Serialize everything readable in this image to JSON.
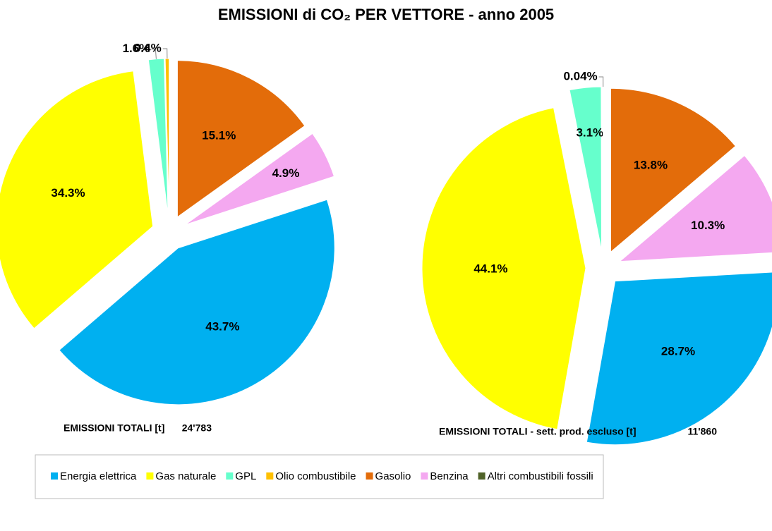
{
  "title": "EMISSIONI di CO₂ PER VETTORE - anno 2005",
  "chart_data": [
    {
      "type": "pie",
      "categories": [
        "Energia elettrica",
        "Gas naturale",
        "GPL",
        "Olio combustibile",
        "Gasolio",
        "Benzina",
        "Altri combustibili fossili"
      ],
      "values": [
        43.7,
        34.3,
        1.6,
        0.4,
        15.1,
        4.9,
        0
      ],
      "value_labels": [
        "43.7%",
        "34.3%",
        "1.6%",
        "0.4%",
        "15.1%",
        "4.9%",
        null
      ],
      "colors": [
        "#00b0f0",
        "#ffff00",
        "#66ffcc",
        "#ffc000",
        "#e36c0a",
        "#f4a8f0",
        "#4f6228"
      ],
      "total_label": "EMISSIONI TOTALI [t]",
      "total": {
        "value": 24783,
        "label": "24'783"
      }
    },
    {
      "type": "pie",
      "categories": [
        "Energia elettrica",
        "Gas naturale",
        "GPL",
        "Olio combustibile",
        "Gasolio",
        "Benzina",
        "Altri combustibili fossili"
      ],
      "values": [
        28.7,
        44.1,
        3.1,
        0.04,
        13.8,
        10.3,
        0
      ],
      "value_labels": [
        "28.7%",
        "44.1%",
        "3.1%",
        "0.04%",
        "13.8%",
        "10.3%",
        null
      ],
      "colors": [
        "#00b0f0",
        "#ffff00",
        "#66ffcc",
        "#ffc000",
        "#e36c0a",
        "#f4a8f0",
        "#4f6228"
      ],
      "total_label": "EMISSIONI TOTALI - sett. prod. escluso [t]",
      "total": {
        "value": 11860,
        "label": "11'860"
      }
    }
  ]
}
